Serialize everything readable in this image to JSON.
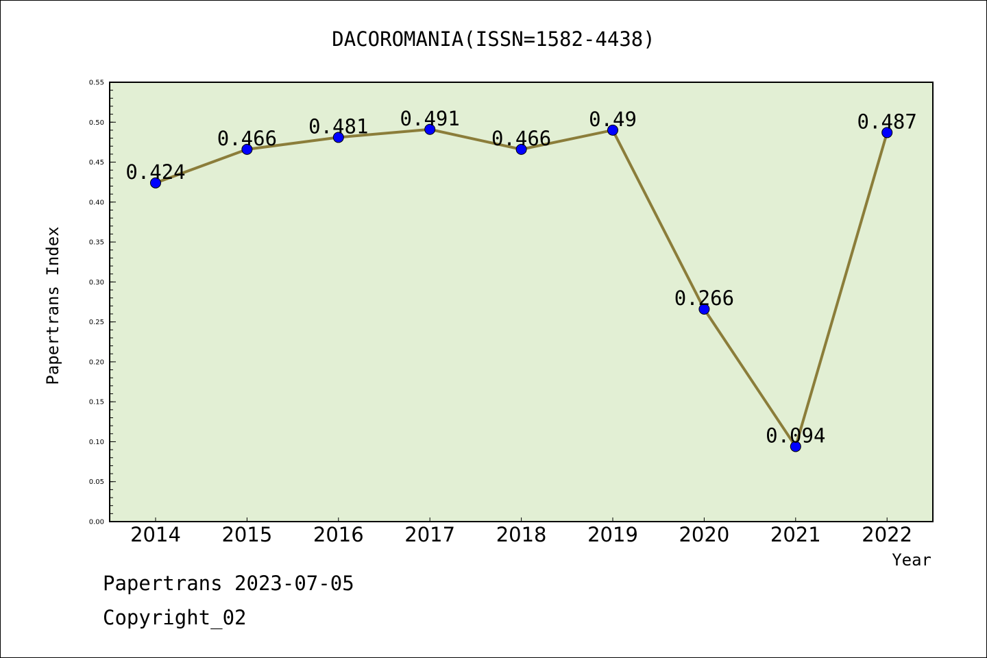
{
  "chart_data": {
    "type": "line",
    "title": "DACOROMANIA(ISSN=1582-4438)",
    "xlabel": "Year",
    "ylabel": "Papertrans Index",
    "categories": [
      "2014",
      "2015",
      "2016",
      "2017",
      "2018",
      "2019",
      "2020",
      "2021",
      "2022"
    ],
    "values": [
      0.424,
      0.466,
      0.481,
      0.491,
      0.466,
      0.49,
      0.266,
      0.094,
      0.487
    ],
    "value_labels": [
      "0.424",
      "0.466",
      "0.481",
      "0.491",
      "0.466",
      "0.49",
      "0.266",
      "0.094",
      "0.487"
    ],
    "ylim": [
      0,
      0.55
    ],
    "yticks": [
      "0.00",
      "0.05",
      "0.10",
      "0.15",
      "0.20",
      "0.25",
      "0.30",
      "0.35",
      "0.40",
      "0.45",
      "0.50",
      "0.55"
    ],
    "grid": false,
    "colors": {
      "plot_background": "#e2efd4",
      "line": "#8b7d3a",
      "marker": "#0000ff"
    }
  },
  "footer": {
    "date_text": "Papertrans 2023-07-05",
    "copyright_text": "Copyright_02"
  }
}
